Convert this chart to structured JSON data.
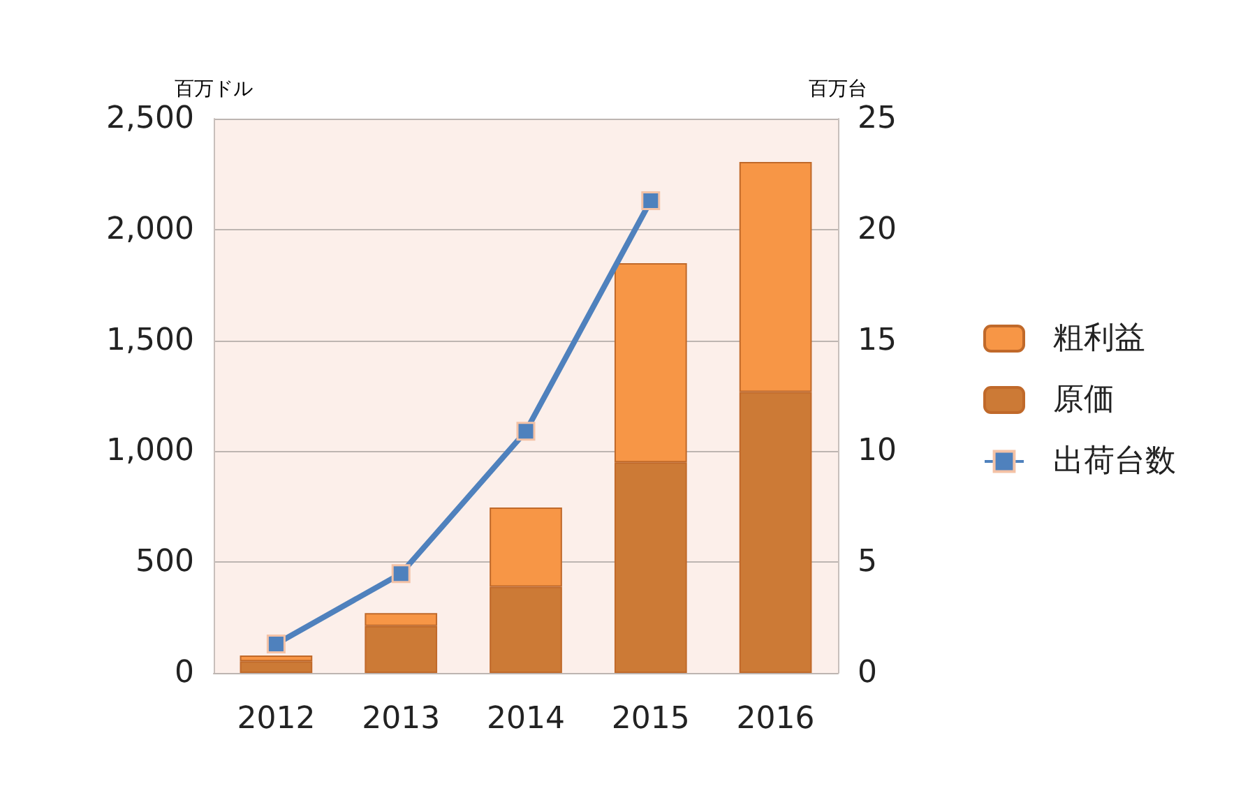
{
  "chart_data": {
    "type": "bar",
    "stacked": true,
    "ylabel": "百万ドル",
    "y2label": "百万台",
    "categories": [
      "2012",
      "2013",
      "2014",
      "2015",
      "2016"
    ],
    "series": [
      {
        "name": "原価",
        "color": "#cc7a36",
        "values": [
          53,
          212,
          389,
          950,
          1267
        ]
      },
      {
        "name": "粗利益",
        "color": "#f79646",
        "values": [
          26,
          58,
          357,
          898,
          1038
        ]
      },
      {
        "name": "出荷台数",
        "type": "line",
        "axis": "y2",
        "color": "#4f81bd",
        "values": [
          1.31,
          4.48,
          10.9,
          21.3,
          null
        ]
      }
    ],
    "ylim": [
      0,
      2500
    ],
    "yticks": [
      {
        "value": 0,
        "label": "0"
      },
      {
        "value": 500,
        "label": "500"
      },
      {
        "value": 1000,
        "label": "1,000"
      },
      {
        "value": 1500,
        "label": "1,500"
      },
      {
        "value": 2000,
        "label": "2,000"
      },
      {
        "value": 2500,
        "label": "2,500"
      }
    ],
    "y2lim": [
      0,
      25
    ],
    "y2ticks": [
      0,
      5,
      10,
      15,
      20,
      25
    ],
    "grid": "y",
    "legend": "right",
    "marker": "square"
  }
}
